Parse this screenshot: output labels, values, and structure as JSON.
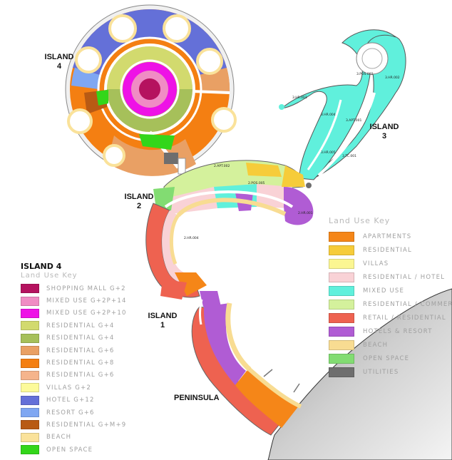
{
  "labels": {
    "island4": [
      "ISLAND",
      "4"
    ],
    "island3": [
      "ISLAND",
      "3"
    ],
    "island2": [
      "ISLAND",
      "2"
    ],
    "island1": [
      "ISLAND",
      "1"
    ],
    "peninsula": "PENINSULA"
  },
  "legend_island4": {
    "heading": "ISLAND 4",
    "title": "Land Use Key",
    "items": [
      {
        "label": "SHOPPING MALL G+2",
        "color": "#b5125f"
      },
      {
        "label": "MIXED USE G+2P+14",
        "color": "#f08cc4"
      },
      {
        "label": "MIXED USE G+2P+10",
        "color": "#ee12e6"
      },
      {
        "label": "RESIDENTIAL G+4",
        "color": "#d2da6e"
      },
      {
        "label": "RESIDENTIAL G+4",
        "color": "#a6c05a"
      },
      {
        "label": "RESIDENTIAL G+6",
        "color": "#e9a064"
      },
      {
        "label": "RESIDENTIAL G+8",
        "color": "#f47f12"
      },
      {
        "label": "RESIDENTIAL G+6",
        "color": "#f5b48c"
      },
      {
        "label": "VILLAS G+2",
        "color": "#fcfa9a"
      },
      {
        "label": "HOTEL G+12",
        "color": "#6470d8"
      },
      {
        "label": "RESORT G+6",
        "color": "#7fa7f2"
      },
      {
        "label": "RESIDENTIAL G+M+9",
        "color": "#b85a14"
      },
      {
        "label": "BEACH",
        "color": "#fae29a"
      },
      {
        "label": "OPEN SPACE",
        "color": "#33d61a"
      }
    ]
  },
  "legend_main": {
    "title": "Land Use Key",
    "items": [
      {
        "label": "APARTMENTS",
        "color": "#f58618"
      },
      {
        "label": "RESIDENTIAL",
        "color": "#f6cc3a"
      },
      {
        "label": "VILLAS",
        "color": "#fbf692"
      },
      {
        "label": "RESIDENTIAL / HOTEL",
        "color": "#f9d2d6"
      },
      {
        "label": "MIXED USE",
        "color": "#60f0dc"
      },
      {
        "label": "RESIDENTIAL / COMMERCIAL",
        "color": "#d4f19c"
      },
      {
        "label": "RETAIL / RESIDENTIAL",
        "color": "#ee6250"
      },
      {
        "label": "HOTELS & RESORT",
        "color": "#b05cd4"
      },
      {
        "label": "BEACH",
        "color": "#f8dc92"
      },
      {
        "label": "OPEN SPACE",
        "color": "#82dc72"
      },
      {
        "label": "UTILITIES",
        "color": "#6e6e6e"
      }
    ]
  },
  "plot_labels": [
    "3.HR.002",
    "3.POS.002",
    "3.HR.003",
    "3.HR.004",
    "3.APT.001",
    "3.HR.005",
    "3.TC.001",
    "2.APT.002",
    "2.POS.005",
    "2.HR.001",
    "2.HR.004"
  ]
}
